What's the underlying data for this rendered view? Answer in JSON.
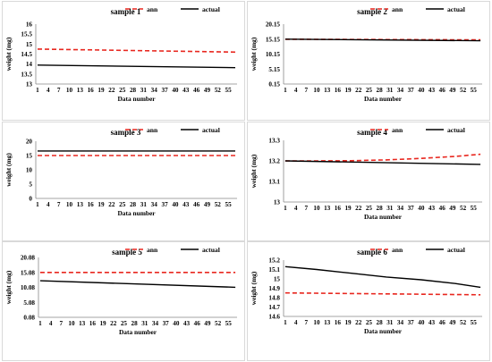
{
  "chart_data": [
    {
      "type": "line",
      "title": "sample 1",
      "xlabel": "Data number",
      "ylabel": "weight (mg)",
      "ylim": [
        13,
        16
      ],
      "yticks": [
        "13",
        "13.5",
        "14",
        "14.5",
        "15",
        "15.5",
        "16"
      ],
      "x": [
        1,
        57
      ],
      "xticks": [
        "1",
        "4",
        "7",
        "10",
        "13",
        "16",
        "19",
        "22",
        "25",
        "28",
        "31",
        "34",
        "37",
        "40",
        "43",
        "46",
        "49",
        "52",
        "55"
      ],
      "legend_position": "top-right",
      "series": [
        {
          "name": "ann",
          "style": "dashed",
          "color": "#e8271f",
          "x": [
            1,
            57
          ],
          "values": [
            14.75,
            14.6
          ]
        },
        {
          "name": "actual",
          "style": "solid",
          "color": "#000000",
          "x": [
            1,
            57
          ],
          "values": [
            13.95,
            13.82
          ]
        }
      ]
    },
    {
      "type": "line",
      "title": "sample 2",
      "xlabel": "Data number",
      "ylabel": "weight (mg)",
      "ylim": [
        0.15,
        20.15
      ],
      "yticks": [
        "0.15",
        "5.15",
        "10.15",
        "15.15",
        "20.15"
      ],
      "x": [
        1,
        57
      ],
      "xticks": [
        "1",
        "4",
        "7",
        "10",
        "13",
        "16",
        "19",
        "22",
        "25",
        "28",
        "31",
        "34",
        "37",
        "40",
        "43",
        "46",
        "49",
        "52",
        "55"
      ],
      "legend_position": "top-right",
      "series": [
        {
          "name": "ann",
          "style": "dashed",
          "color": "#e8271f",
          "x": [
            1,
            57
          ],
          "values": [
            15.1,
            14.9
          ]
        },
        {
          "name": "actual",
          "style": "solid",
          "color": "#000000",
          "x": [
            1,
            57
          ],
          "values": [
            15.15,
            14.6
          ]
        }
      ]
    },
    {
      "type": "line",
      "title": "sample 3",
      "xlabel": "Data number",
      "ylabel": "weight (mg)",
      "ylim": [
        0,
        20
      ],
      "yticks": [
        "0",
        "5",
        "10",
        "15",
        "20"
      ],
      "x": [
        1,
        57
      ],
      "xticks": [
        "1",
        "4",
        "7",
        "10",
        "13",
        "16",
        "19",
        "22",
        "25",
        "28",
        "31",
        "34",
        "37",
        "40",
        "43",
        "46",
        "49",
        "52",
        "55"
      ],
      "legend_position": "top-right",
      "series": [
        {
          "name": "ann",
          "style": "dashed",
          "color": "#e8271f",
          "x": [
            1,
            57
          ],
          "values": [
            15.0,
            15.0
          ]
        },
        {
          "name": "actual",
          "style": "solid",
          "color": "#000000",
          "x": [
            1,
            57
          ],
          "values": [
            16.6,
            16.6
          ]
        }
      ]
    },
    {
      "type": "line",
      "title": "sample 4",
      "xlabel": "Data number",
      "ylabel": "weight (mg)",
      "ylim": [
        13,
        13.3
      ],
      "yticks": [
        "13",
        "13.1",
        "13.2",
        "13.3"
      ],
      "x": [
        1,
        57
      ],
      "xticks": [
        "1",
        "4",
        "7",
        "10",
        "13",
        "16",
        "19",
        "22",
        "25",
        "28",
        "31",
        "34",
        "37",
        "40",
        "43",
        "46",
        "49",
        "52",
        "55"
      ],
      "legend_position": "top-right",
      "series": [
        {
          "name": "ann",
          "style": "dashed",
          "color": "#e8271f",
          "x": [
            1,
            10,
            20,
            30,
            40,
            50,
            57
          ],
          "values": [
            13.2,
            13.2,
            13.201,
            13.205,
            13.212,
            13.222,
            13.232
          ]
        },
        {
          "name": "actual",
          "style": "solid",
          "color": "#000000",
          "x": [
            1,
            57
          ],
          "values": [
            13.2,
            13.183
          ]
        }
      ]
    },
    {
      "type": "line",
      "title": "sample 5",
      "xlabel": "Data number",
      "ylabel": "weight (mg)",
      "ylim": [
        0.08,
        20.08
      ],
      "yticks": [
        "0.08",
        "5.08",
        "10.08",
        "15.08",
        "20.08"
      ],
      "x": [
        1,
        57
      ],
      "xticks": [
        "1",
        "4",
        "7",
        "10",
        "13",
        "16",
        "19",
        "22",
        "25",
        "28",
        "31",
        "34",
        "37",
        "40",
        "43",
        "46",
        "49",
        "52",
        "55"
      ],
      "legend_position": "top-right",
      "series": [
        {
          "name": "ann",
          "style": "dashed",
          "color": "#e8271f",
          "x": [
            1,
            57
          ],
          "values": [
            15.08,
            15.08
          ]
        },
        {
          "name": "actual",
          "style": "solid",
          "color": "#000000",
          "x": [
            1,
            57
          ],
          "values": [
            12.3,
            10.1
          ]
        }
      ]
    },
    {
      "type": "line",
      "title": "sample 6",
      "xlabel": "Data number",
      "ylabel": "weight (mg)",
      "ylim": [
        14.6,
        15.2
      ],
      "yticks": [
        "14.6",
        "14.7",
        "14.8",
        "14.9",
        "15",
        "15.1",
        "15.2"
      ],
      "x": [
        1,
        57
      ],
      "xticks": [
        "1",
        "4",
        "7",
        "10",
        "13",
        "16",
        "19",
        "22",
        "25",
        "28",
        "31",
        "34",
        "37",
        "40",
        "43",
        "46",
        "49",
        "52",
        "55"
      ],
      "legend_position": "top-right",
      "series": [
        {
          "name": "ann",
          "style": "dashed",
          "color": "#e8271f",
          "x": [
            1,
            57
          ],
          "values": [
            14.85,
            14.83
          ]
        },
        {
          "name": "actual",
          "style": "solid",
          "color": "#000000",
          "x": [
            1,
            10,
            20,
            30,
            40,
            50,
            57
          ],
          "values": [
            15.13,
            15.1,
            15.06,
            15.02,
            14.99,
            14.95,
            14.91
          ]
        }
      ]
    }
  ]
}
